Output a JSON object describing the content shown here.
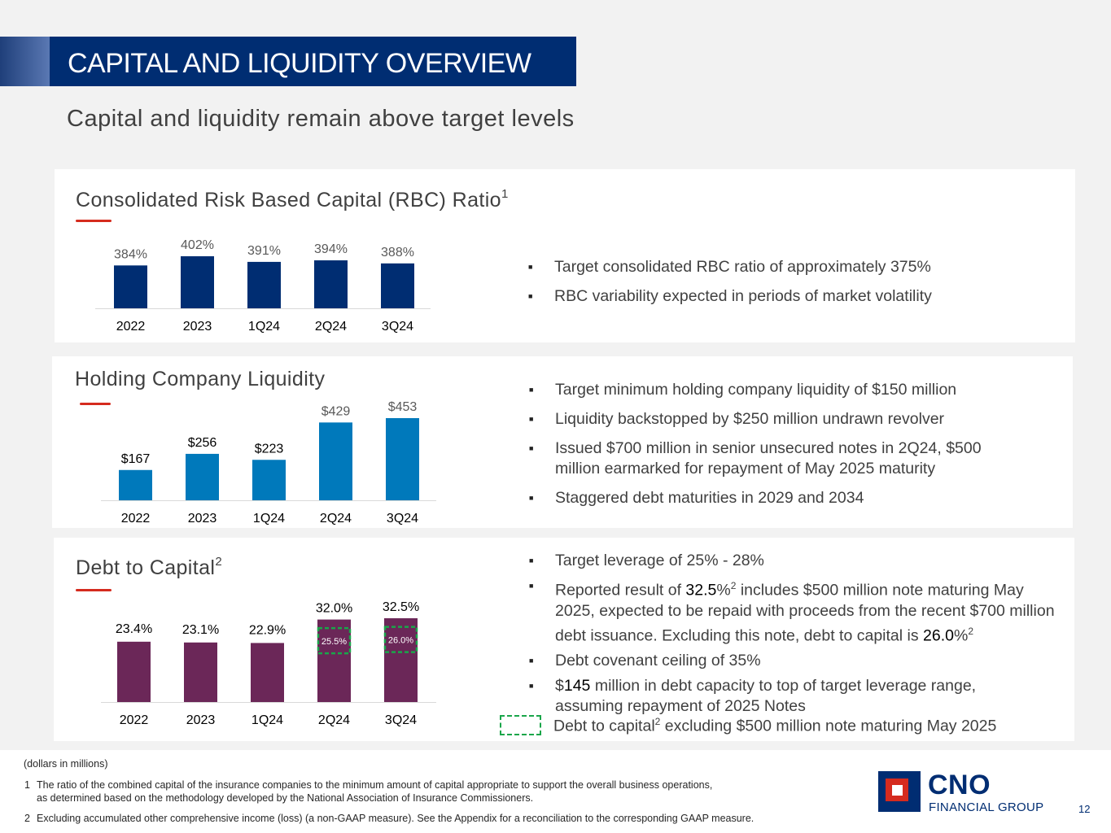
{
  "header": {
    "title": "CAPITAL AND LIQUIDITY OVERVIEW",
    "subtitle": "Capital and liquidity remain above target levels"
  },
  "rbc": {
    "title": "Consolidated Risk Based Capital (RBC) Ratio",
    "title_sup": "1",
    "bullets": [
      "Target consolidated RBC ratio of approximately 375%",
      "RBC variability expected in periods of market volatility"
    ]
  },
  "liquidity": {
    "title": "Holding Company Liquidity",
    "bullets": [
      "Target minimum holding company liquidity of $150 million",
      "Liquidity backstopped by $250 million undrawn revolver",
      "Issued $700 million in senior unsecured notes in 2Q24, $500 million earmarked for repayment of May 2025 maturity",
      "Staggered debt maturities in 2029 and 2034"
    ]
  },
  "debt": {
    "title": "Debt to Capital",
    "title_sup": "2",
    "bullet1": "Target leverage of 25% - 28%",
    "bullet2": {
      "a": "Reported result of ",
      "v1": "32.5",
      "b": "%",
      "sup1": "2",
      "c": " includes $500 million note maturing May 2025, expected to be repaid with proceeds from the recent $700 million debt issuance.  Excluding this note, debt to capital is ",
      "v2": "26.0",
      "d": "%",
      "sup2": "2"
    },
    "bullet3": "Debt covenant ceiling of 35%",
    "bullet4": {
      "a": "$",
      "v": "145",
      "b": " million in debt capacity to top of target leverage range, assuming repayment of 2025 Notes"
    },
    "legend": {
      "a": "Debt to capital",
      "sup": "2",
      "b": " excluding $500 million note maturing May 2025",
      "color": "#1aa64a"
    }
  },
  "footer": {
    "units": "(dollars in millions)",
    "note1_num": "1",
    "note1_line1": "The ratio of the combined capital of the insurance companies to the minimum amount of capital appropriate to support the overall business operations,",
    "note1_line2": "as determined based on the methodology developed by the National Association of Insurance Commissioners.",
    "note2_num": "2",
    "note2": "Excluding accumulated other comprehensive income (loss) (a non-GAAP measure). See the Appendix for a reconciliation to the corresponding GAAP measure.",
    "page": "12"
  },
  "logo": {
    "name": "CNO",
    "sub": "FINANCIAL GROUP"
  },
  "chart_data": [
    {
      "type": "bar",
      "id": "rbc",
      "categories": [
        "2022",
        "2023",
        "1Q24",
        "2Q24",
        "3Q24"
      ],
      "values": [
        384,
        402,
        391,
        394,
        388
      ],
      "labels": [
        "384%",
        "402%",
        "391%",
        "394%",
        "388%"
      ],
      "color": "#002d72",
      "ylim": [
        300,
        410
      ]
    },
    {
      "type": "bar",
      "id": "liquidity",
      "categories": [
        "2022",
        "2023",
        "1Q24",
        "2Q24",
        "3Q24"
      ],
      "values": [
        167,
        256,
        223,
        429,
        453
      ],
      "labels": [
        "$167",
        "$256",
        "$223",
        "$429",
        "$453"
      ],
      "color": "#0079bb",
      "ylim": [
        0,
        453
      ]
    },
    {
      "type": "bar",
      "id": "debt",
      "categories": [
        "2022",
        "2023",
        "1Q24",
        "2Q24",
        "3Q24"
      ],
      "values": [
        23.4,
        23.1,
        22.9,
        32.0,
        32.5
      ],
      "labels": [
        "23.4%",
        "23.1%",
        "22.9%",
        "32.0%",
        "32.5%"
      ],
      "color": "#6b2758",
      "excluding": [
        null,
        null,
        null,
        25.5,
        26.0
      ],
      "excluding_labels": [
        "",
        "",
        "",
        "25.5%",
        "26.0%"
      ],
      "ylim": [
        0,
        32.5
      ]
    }
  ]
}
